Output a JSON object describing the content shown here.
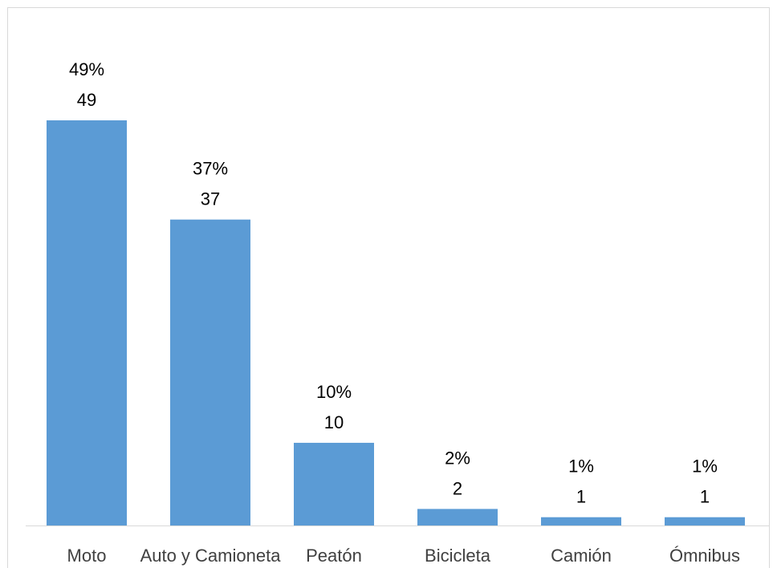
{
  "chart_data": {
    "type": "bar",
    "title": "",
    "xlabel": "",
    "ylabel": "",
    "categories": [
      "Moto",
      "Auto y Camioneta",
      "Peatón",
      "Bicicleta",
      "Camión",
      "Ómnibus"
    ],
    "values": [
      49,
      37,
      10,
      2,
      1,
      1
    ],
    "percent_labels": [
      "49%",
      "37%",
      "10%",
      "2%",
      "1%",
      "1%"
    ],
    "value_labels": [
      "49",
      "37",
      "10",
      "2",
      "1",
      "1"
    ],
    "ylim": [
      0,
      49
    ],
    "grid": false,
    "legend": "none",
    "colors": {
      "bar": "#5b9bd5",
      "axis": "#d9d9d9",
      "frame": "#d9d9d9",
      "category_text": "#404040",
      "label_text": "#000000"
    }
  }
}
